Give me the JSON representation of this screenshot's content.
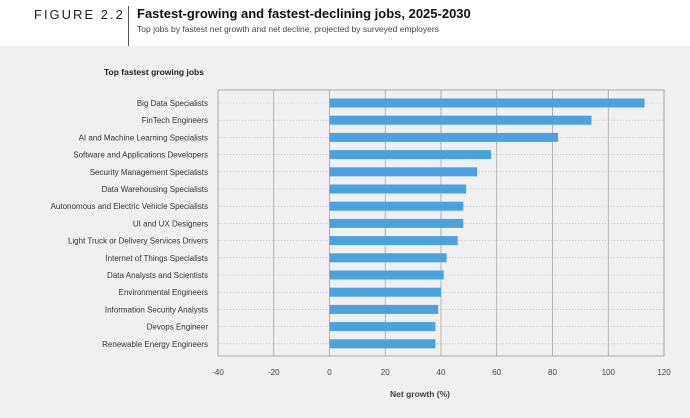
{
  "figure": {
    "label": "FIGURE 2.2",
    "title": "Fastest-growing and fastest-declining jobs, 2025-2030",
    "subtitle": "Top jobs by fastest net growth and net decline, projected by surveyed employers"
  },
  "chart_data": {
    "type": "bar",
    "orientation": "horizontal",
    "title": "Top fastest growing jobs",
    "xlabel": "Net growth (%)",
    "ylabel": "",
    "xlim": [
      -40,
      120
    ],
    "xticks": [
      -40,
      -20,
      0,
      20,
      40,
      60,
      80,
      100,
      120
    ],
    "grid": true,
    "bar_color": "#4aa3df",
    "categories": [
      "Big Data Specialists",
      "FinTech Engineers",
      "AI and Machine Learning Specialists",
      "Software and Applications Developers",
      "Security Management Specialists",
      "Data Warehousing Specialists",
      "Autonomous and Electric Vehicle Specialists",
      "UI and UX Designers",
      "Light Truck or Delivery Services Drivers",
      "Internet of Things Specialists",
      "Data Analysts and Scientists",
      "Environmental Engineers",
      "Information Security Analysts",
      "Devops Engineer",
      "Renewable Energy Engineers"
    ],
    "values": [
      113,
      94,
      82,
      58,
      53,
      49,
      48,
      48,
      46,
      42,
      41,
      40,
      39,
      38,
      38
    ]
  }
}
